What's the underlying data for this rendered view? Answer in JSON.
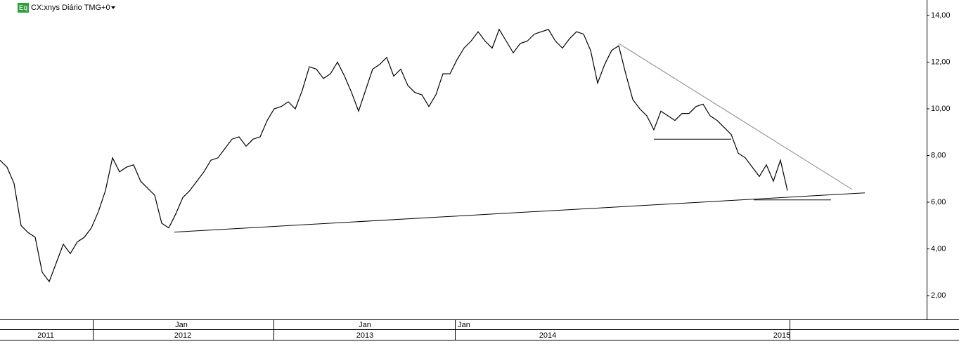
{
  "chart_data": {
    "type": "line",
    "badge": "Eq",
    "title": "CX:xnys Diário TMG+0",
    "color": "#000000",
    "values": [
      7.8,
      7.5,
      6.8,
      5.0,
      4.7,
      4.5,
      3.0,
      2.6,
      3.4,
      4.2,
      3.8,
      4.3,
      4.5,
      4.9,
      5.6,
      6.5,
      7.9,
      7.3,
      7.5,
      7.6,
      6.9,
      6.6,
      6.3,
      5.1,
      4.9,
      5.5,
      6.2,
      6.5,
      6.9,
      7.3,
      7.8,
      7.9,
      8.3,
      8.7,
      8.8,
      8.4,
      8.7,
      8.8,
      9.5,
      10.0,
      10.1,
      10.3,
      10.0,
      10.8,
      11.8,
      11.7,
      11.3,
      11.5,
      12.0,
      11.4,
      10.7,
      9.9,
      10.8,
      11.7,
      11.9,
      12.2,
      11.4,
      11.7,
      11.0,
      10.7,
      10.6,
      10.1,
      10.6,
      11.5,
      11.5,
      12.1,
      12.6,
      12.9,
      13.3,
      12.9,
      12.6,
      13.4,
      12.9,
      12.4,
      12.8,
      12.9,
      13.2,
      13.3,
      13.4,
      12.9,
      12.6,
      13.0,
      13.3,
      13.2,
      12.5,
      11.1,
      11.9,
      12.5,
      12.7,
      11.5,
      10.4,
      10.0,
      9.7,
      9.1,
      9.9,
      9.7,
      9.5,
      9.8,
      9.8,
      10.1,
      10.2,
      9.7,
      9.5,
      9.2,
      8.9,
      8.1,
      7.9,
      7.5,
      7.1,
      7.6,
      6.9,
      7.8,
      6.5
    ],
    "trendlines": [
      {
        "start": 4.72,
        "end": 6.4
      },
      {
        "start": 12.8,
        "end": 6.55
      },
      {
        "start": 8.7,
        "end": 8.7
      },
      {
        "start": 6.1,
        "end": 6.1
      }
    ],
    "ylim": [
      0.98,
      14.66
    ],
    "yticks": [
      {
        "value": 2,
        "label": "2,00"
      },
      {
        "value": 4,
        "label": "4,00"
      },
      {
        "value": 6,
        "label": "6,00"
      },
      {
        "value": 8,
        "label": "8,00"
      },
      {
        "value": 10,
        "label": "10,00"
      },
      {
        "value": 12,
        "label": "12,00"
      },
      {
        "value": 14,
        "label": "14,00"
      }
    ],
    "month_labels": [
      "Jan",
      "Jan",
      "Jan"
    ],
    "year_labels": [
      "2011",
      "2012",
      "2013",
      "2014",
      "2015"
    ]
  }
}
